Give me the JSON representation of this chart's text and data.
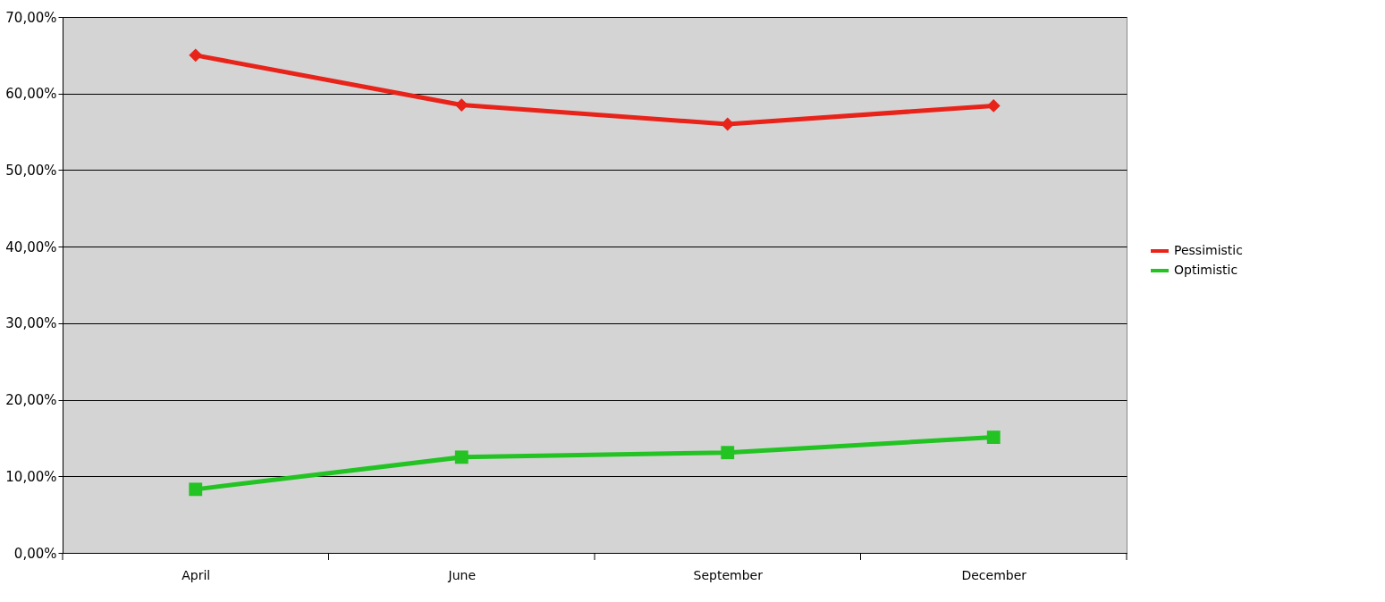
{
  "chart_data": {
    "type": "line",
    "categories": [
      "April",
      "June",
      "September",
      "December"
    ],
    "series": [
      {
        "name": "Pessimistic",
        "color": "#e8231a",
        "marker": "diamond",
        "values": [
          65.0,
          58.5,
          56.0,
          58.4
        ]
      },
      {
        "name": "Optimistic",
        "color": "#22c322",
        "marker": "square",
        "values": [
          8.3,
          12.5,
          13.1,
          15.1
        ]
      }
    ],
    "ylim": [
      0,
      70
    ],
    "yticks": [
      {
        "value": 0,
        "label": "0,00%"
      },
      {
        "value": 10,
        "label": "10,00%"
      },
      {
        "value": 20,
        "label": "20,00%"
      },
      {
        "value": 30,
        "label": "30,00%"
      },
      {
        "value": 40,
        "label": "40,00%"
      },
      {
        "value": 50,
        "label": "50,00%"
      },
      {
        "value": 60,
        "label": "60,00%"
      },
      {
        "value": 70,
        "label": "70,00%"
      }
    ],
    "grid": "y",
    "legend": "right",
    "line_style": "solid"
  }
}
